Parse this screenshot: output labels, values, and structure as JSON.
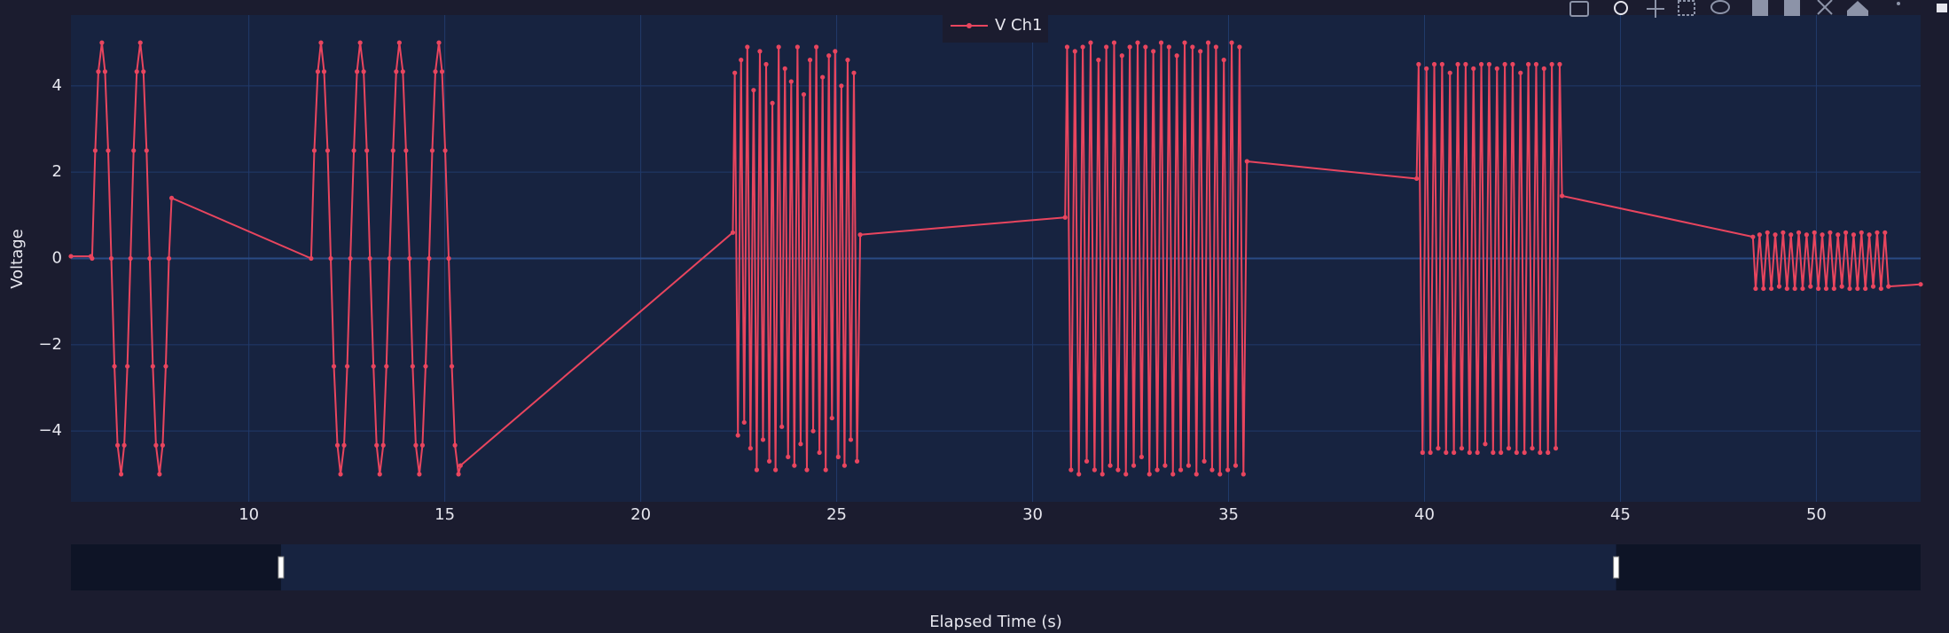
{
  "chart_data": {
    "type": "line",
    "x_label": "Elapsed Time (s)",
    "y_label": "Voltage",
    "xlim": [
      5.46,
      52.66
    ],
    "ylim": [
      -5.64,
      5.64
    ],
    "xticks": [
      10,
      15,
      20,
      25,
      30,
      35,
      40,
      45,
      50
    ],
    "yticks": [
      {
        "value": -4,
        "label": "−4"
      },
      {
        "value": -2,
        "label": "−2"
      },
      0,
      2,
      4
    ],
    "grid": true,
    "legend": "top",
    "range_slider": [
      10.82,
      44.89
    ],
    "series": [
      {
        "name": "V Ch1",
        "color": "#e8455e",
        "x": [
          5.46,
          5.97,
          6.0,
          6.08,
          6.16,
          6.25,
          6.33,
          6.41,
          6.49,
          6.57,
          6.65,
          6.74,
          6.82,
          6.9,
          6.98,
          7.06,
          7.14,
          7.23,
          7.31,
          7.39,
          7.47,
          7.55,
          7.63,
          7.72,
          7.8,
          7.88,
          7.96,
          8.03,
          11.59,
          11.67,
          11.76,
          11.84,
          11.92,
          12.01,
          12.09,
          12.17,
          12.26,
          12.34,
          12.43,
          12.51,
          12.59,
          12.68,
          12.76,
          12.84,
          12.93,
          13.01,
          13.09,
          13.18,
          13.26,
          13.34,
          13.43,
          13.51,
          13.59,
          13.68,
          13.76,
          13.84,
          13.93,
          14.01,
          14.1,
          14.18,
          14.26,
          14.35,
          14.43,
          14.51,
          14.6,
          14.68,
          14.76,
          14.85,
          14.93,
          15.01,
          15.1,
          15.18,
          15.26,
          15.35,
          15.4,
          22.35,
          22.4,
          22.48,
          22.56,
          22.64,
          22.72,
          22.8,
          22.88,
          22.96,
          23.04,
          23.12,
          23.2,
          23.28,
          23.36,
          23.44,
          23.52,
          23.6,
          23.68,
          23.76,
          23.84,
          23.92,
          24.0,
          24.08,
          24.16,
          24.24,
          24.32,
          24.4,
          24.48,
          24.56,
          24.64,
          24.72,
          24.8,
          24.88,
          24.96,
          25.04,
          25.12,
          25.2,
          25.28,
          25.36,
          25.44,
          25.52,
          25.6,
          30.83,
          30.88,
          30.98,
          31.08,
          31.18,
          31.28,
          31.38,
          31.48,
          31.58,
          31.68,
          31.78,
          31.88,
          31.98,
          32.08,
          32.18,
          32.28,
          32.38,
          32.48,
          32.58,
          32.68,
          32.78,
          32.88,
          32.98,
          33.08,
          33.18,
          33.28,
          33.38,
          33.48,
          33.58,
          33.68,
          33.78,
          33.88,
          33.98,
          34.08,
          34.18,
          34.28,
          34.38,
          34.48,
          34.58,
          34.68,
          34.78,
          34.88,
          34.98,
          35.08,
          35.18,
          35.28,
          35.38,
          35.47,
          39.8,
          39.85,
          39.95,
          40.05,
          40.15,
          40.25,
          40.35,
          40.45,
          40.55,
          40.65,
          40.75,
          40.85,
          40.95,
          41.05,
          41.15,
          41.25,
          41.35,
          41.45,
          41.55,
          41.65,
          41.75,
          41.85,
          41.95,
          42.05,
          42.15,
          42.25,
          42.35,
          42.45,
          42.55,
          42.65,
          42.75,
          42.85,
          42.95,
          43.05,
          43.15,
          43.25,
          43.35,
          43.45,
          43.51,
          48.38,
          48.45,
          48.55,
          48.65,
          48.75,
          48.85,
          48.95,
          49.05,
          49.15,
          49.25,
          49.35,
          49.45,
          49.55,
          49.65,
          49.75,
          49.85,
          49.95,
          50.05,
          50.15,
          50.25,
          50.35,
          50.45,
          50.55,
          50.65,
          50.75,
          50.85,
          50.95,
          51.05,
          51.15,
          51.25,
          51.35,
          51.45,
          51.55,
          51.65,
          51.75,
          51.84,
          52.66
        ],
        "values": [
          0.05,
          0.05,
          0,
          2.5,
          4.33,
          5,
          4.33,
          2.5,
          0,
          -2.5,
          -4.33,
          -5,
          -4.33,
          -2.5,
          0,
          2.5,
          4.33,
          5,
          4.33,
          2.5,
          0,
          -2.5,
          -4.33,
          -5,
          -4.33,
          -2.5,
          0,
          1.4,
          0,
          2.5,
          4.33,
          5,
          4.33,
          2.5,
          0,
          -2.5,
          -4.33,
          -5,
          -4.33,
          -2.5,
          0,
          2.5,
          4.33,
          5,
          4.33,
          2.5,
          0,
          -2.5,
          -4.33,
          -5,
          -4.33,
          -2.5,
          0,
          2.5,
          4.33,
          5,
          4.33,
          2.5,
          0,
          -2.5,
          -4.33,
          -5,
          -4.33,
          -2.5,
          0,
          2.5,
          4.33,
          5,
          4.33,
          2.5,
          0,
          -2.5,
          -4.33,
          -5,
          -4.8,
          0.6,
          4.3,
          -4.1,
          4.6,
          -3.8,
          4.9,
          -4.4,
          3.9,
          -4.9,
          4.8,
          -4.2,
          4.5,
          -4.7,
          3.6,
          -4.9,
          4.9,
          -3.9,
          4.4,
          -4.6,
          4.1,
          -4.8,
          4.9,
          -4.3,
          3.8,
          -4.9,
          4.6,
          -4.0,
          4.9,
          -4.5,
          4.2,
          -4.9,
          4.7,
          -3.7,
          4.8,
          -4.6,
          4.0,
          -4.8,
          4.6,
          -4.2,
          4.3,
          -4.7,
          0.55,
          0.95,
          4.9,
          -4.9,
          4.8,
          -5.0,
          4.9,
          -4.7,
          5.0,
          -4.9,
          4.6,
          -5.0,
          4.9,
          -4.8,
          5.0,
          -4.9,
          4.7,
          -5.0,
          4.9,
          -4.8,
          5.0,
          -4.6,
          4.9,
          -5.0,
          4.8,
          -4.9,
          5.0,
          -4.8,
          4.9,
          -5.0,
          4.7,
          -4.9,
          5.0,
          -4.8,
          4.9,
          -5.0,
          4.8,
          -4.7,
          5.0,
          -4.9,
          4.9,
          -5.0,
          4.6,
          -4.9,
          5.0,
          -4.8,
          4.9,
          -5.0,
          2.25,
          1.85,
          4.5,
          -4.5,
          4.4,
          -4.5,
          4.5,
          -4.4,
          4.5,
          -4.5,
          4.3,
          -4.5,
          4.5,
          -4.4,
          4.5,
          -4.5,
          4.4,
          -4.5,
          4.5,
          -4.3,
          4.5,
          -4.5,
          4.4,
          -4.5,
          4.5,
          -4.4,
          4.5,
          -4.5,
          4.3,
          -4.5,
          4.5,
          -4.4,
          4.5,
          -4.5,
          4.4,
          -4.5,
          4.5,
          -4.4,
          4.5,
          1.45,
          0.5,
          -0.7,
          0.55,
          -0.7,
          0.6,
          -0.7,
          0.55,
          -0.65,
          0.6,
          -0.7,
          0.55,
          -0.7,
          0.6,
          -0.7,
          0.55,
          -0.65,
          0.6,
          -0.7,
          0.55,
          -0.7,
          0.6,
          -0.7,
          0.55,
          -0.65,
          0.6,
          -0.7,
          0.55,
          -0.7,
          0.6,
          -0.7,
          0.55,
          -0.65,
          0.6,
          -0.7,
          0.6,
          -0.65,
          -0.6
        ]
      }
    ]
  }
}
